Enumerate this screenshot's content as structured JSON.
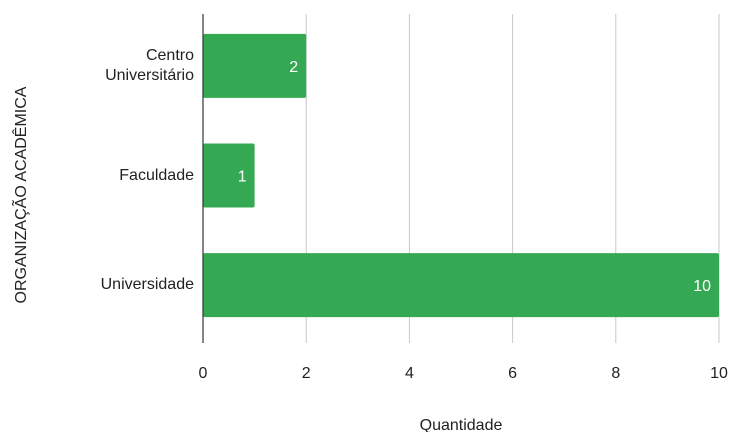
{
  "chart_data": {
    "type": "bar",
    "orientation": "horizontal",
    "categories": [
      "Centro Universitário",
      "Faculdade",
      "Universidade"
    ],
    "values": [
      2,
      1,
      10
    ],
    "color": "#34a853",
    "xlim": [
      0,
      10
    ],
    "xticks": [
      0,
      2,
      4,
      6,
      8,
      10
    ],
    "grid": true,
    "xlabel": "Quantidade",
    "ylabel": "ORGANIZAÇÃO ACADÊMICA"
  }
}
